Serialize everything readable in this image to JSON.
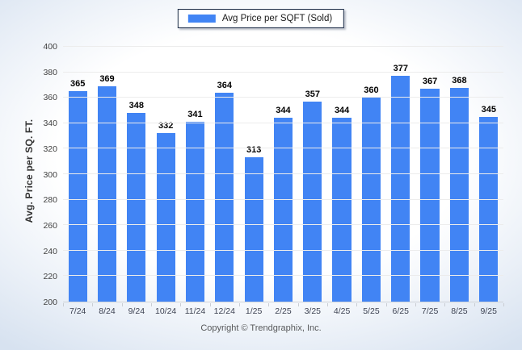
{
  "chart_data": {
    "type": "bar",
    "title": "Avg Price per SQFT (Sold)",
    "legend": {
      "label": "Avg Price per SQFT (Sold)",
      "position": "top-center"
    },
    "categories": [
      "7/24",
      "8/24",
      "9/24",
      "10/24",
      "11/24",
      "12/24",
      "1/25",
      "2/25",
      "3/25",
      "4/25",
      "5/25",
      "6/25",
      "7/25",
      "8/25",
      "9/25"
    ],
    "values": [
      365,
      369,
      348,
      332,
      341,
      364,
      313,
      344,
      357,
      344,
      360,
      377,
      367,
      368,
      345
    ],
    "xlabel": "",
    "ylabel": "Avg. Price per SQ. FT.",
    "ylim": [
      200,
      400
    ],
    "ytick_step": 20,
    "grid": "horizontal",
    "value_labels": true
  },
  "colors": {
    "bar": "#4184f4",
    "legend_border": "#1c2c47",
    "gridline": "#ececec",
    "baseline": "#cfd3d8",
    "background_edge": "#d7e2f0"
  },
  "footer": {
    "copyright": "Copyright © Trendgraphix, Inc."
  }
}
